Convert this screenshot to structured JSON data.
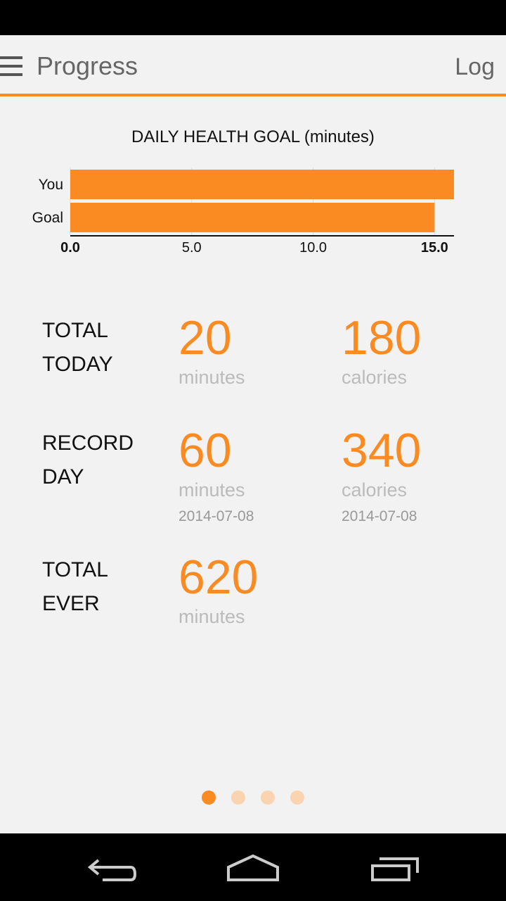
{
  "header": {
    "title": "Progress",
    "action": "Log"
  },
  "chart_data": {
    "type": "hbar",
    "title": "DAILY HEALTH GOAL (minutes)",
    "categories": [
      "You",
      "Goal"
    ],
    "values": [
      15.8,
      15
    ],
    "color": "#f98b22",
    "xlim": [
      0,
      15.8
    ],
    "xticks": [
      {
        "value": 0,
        "label": "0.0"
      },
      {
        "value": 5,
        "label": "5.0"
      },
      {
        "value": 10,
        "label": "10.0"
      },
      {
        "value": 15,
        "label": "15.0"
      }
    ],
    "grid": true
  },
  "stats": [
    {
      "label": [
        "TOTAL",
        "TODAY"
      ],
      "cells": [
        {
          "value": 20,
          "unit": "minutes"
        },
        {
          "value": 180,
          "unit": "calories"
        }
      ]
    },
    {
      "label": [
        "RECORD",
        "DAY"
      ],
      "cells": [
        {
          "value": 60,
          "unit": "minutes",
          "date": "2014-07-08"
        },
        {
          "value": 340,
          "unit": "calories",
          "date": "2014-07-08"
        }
      ]
    },
    {
      "label": [
        "TOTAL",
        "EVER"
      ],
      "cells": [
        {
          "value": 620,
          "unit": "minutes"
        }
      ]
    }
  ]
}
